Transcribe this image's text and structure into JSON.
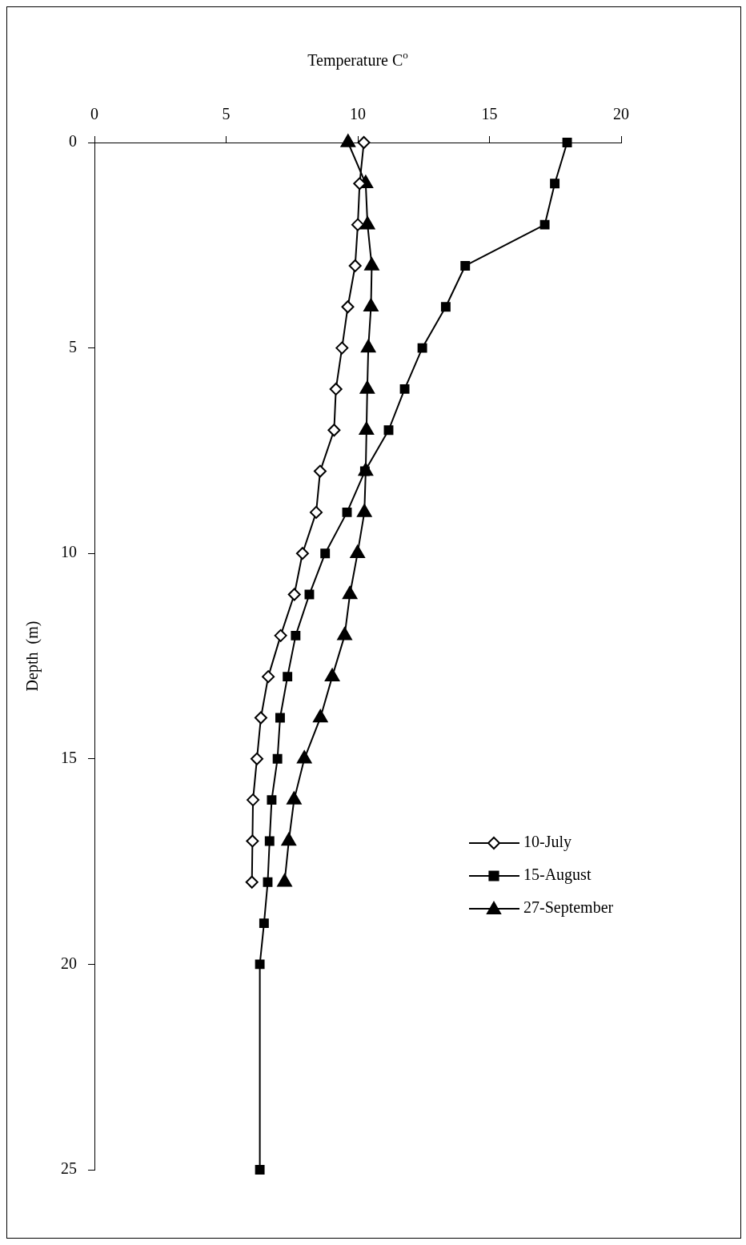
{
  "chart_data": {
    "type": "line",
    "xlabel": "Temperature C$^{o}$",
    "ylabel": "Depth  (m)",
    "xlim": [
      0,
      20
    ],
    "xticks": [
      0,
      5,
      10,
      15,
      20
    ],
    "ylim": [
      25,
      0
    ],
    "yticks": [
      0,
      5,
      10,
      15,
      20,
      25
    ],
    "legend": "bottom right",
    "line_style": "solid",
    "series": [
      {
        "name": "10-July",
        "color": "#000000",
        "marker": "diamond",
        "x": [
          10.23,
          10.07,
          10.0,
          9.9,
          9.62,
          9.4,
          9.17,
          9.1,
          8.57,
          8.42,
          7.9,
          7.59,
          7.07,
          6.6,
          6.32,
          6.17,
          6.02,
          6.0,
          5.98
        ],
        "values": [
          0,
          1,
          2,
          3,
          4,
          5,
          6,
          7,
          8,
          9,
          10,
          11,
          12,
          13,
          14,
          15,
          16,
          17,
          18
        ]
      },
      {
        "name": "15-August",
        "color": "#000000",
        "marker": "square",
        "x": [
          17.95,
          17.48,
          17.1,
          14.08,
          13.34,
          12.45,
          11.78,
          11.17,
          10.27,
          9.59,
          8.76,
          8.16,
          7.64,
          7.33,
          7.05,
          6.95,
          6.73,
          6.65,
          6.58,
          6.44,
          6.28,
          6.28
        ],
        "values": [
          0,
          1,
          2,
          3,
          4,
          5,
          6,
          7,
          8,
          9,
          10,
          11,
          12,
          13,
          14,
          15,
          16,
          17,
          18,
          19,
          20,
          25
        ]
      },
      {
        "name": "27-September",
        "color": "#000000",
        "marker": "triangle",
        "x": [
          9.63,
          10.3,
          10.37,
          10.53,
          10.5,
          10.4,
          10.36,
          10.33,
          10.3,
          10.25,
          9.99,
          9.7,
          9.5,
          9.03,
          8.58,
          7.97,
          7.58,
          7.38,
          7.22
        ],
        "values": [
          0,
          1,
          2,
          3,
          4,
          5,
          6,
          7,
          8,
          9,
          10,
          11,
          12,
          13,
          14,
          15,
          16,
          17,
          18
        ]
      }
    ]
  }
}
